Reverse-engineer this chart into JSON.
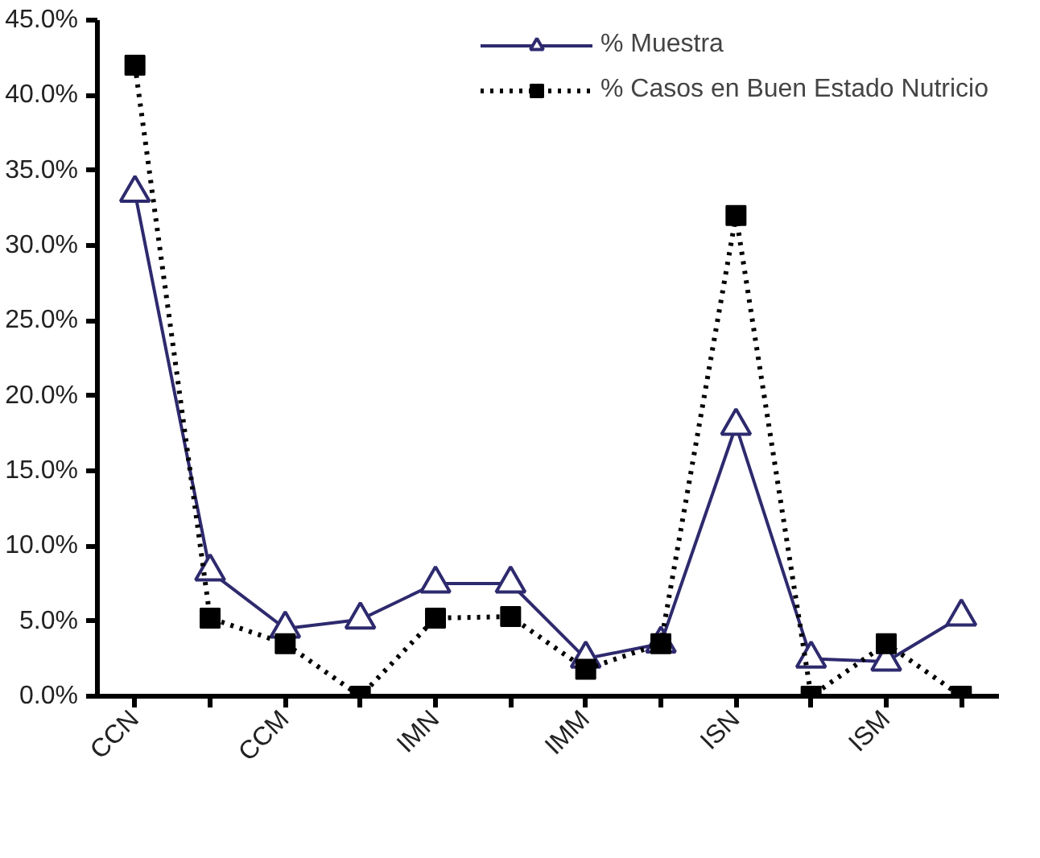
{
  "chart_data": {
    "type": "line",
    "categories": [
      "CCN",
      null,
      "CCM",
      null,
      "IMN",
      null,
      "IMM",
      null,
      "ISN",
      null,
      "ISM",
      null
    ],
    "series": [
      {
        "name": "% Muestra",
        "color": "#2e2a6e",
        "marker": "triangle",
        "line_style": "solid",
        "values": [
          33.5,
          8.3,
          4.5,
          5.1,
          7.5,
          7.5,
          2.5,
          3.5,
          18.0,
          2.5,
          2.3,
          5.3
        ]
      },
      {
        "name": "% Casos en Buen Estado Nutricio",
        "color": "#000000",
        "marker": "square",
        "line_style": "dotted",
        "values": [
          42.0,
          5.2,
          3.5,
          0.0,
          5.2,
          5.3,
          1.8,
          3.5,
          32.0,
          0.0,
          3.5,
          0.0
        ]
      }
    ],
    "ylim": [
      0,
      45
    ],
    "yticks": [
      {
        "value": 0,
        "label": "0.0%"
      },
      {
        "value": 5,
        "label": "5.0%"
      },
      {
        "value": 10,
        "label": "10.0%"
      },
      {
        "value": 15,
        "label": "15.0%"
      },
      {
        "value": 20,
        "label": "20.0%"
      },
      {
        "value": 25,
        "label": "25.0%"
      },
      {
        "value": 30,
        "label": "30.0%"
      },
      {
        "value": 35,
        "label": "35.0%"
      },
      {
        "value": 40,
        "label": "40.0%"
      },
      {
        "value": 45,
        "label": "45.0%"
      }
    ],
    "grid": false,
    "legend": "top right"
  }
}
